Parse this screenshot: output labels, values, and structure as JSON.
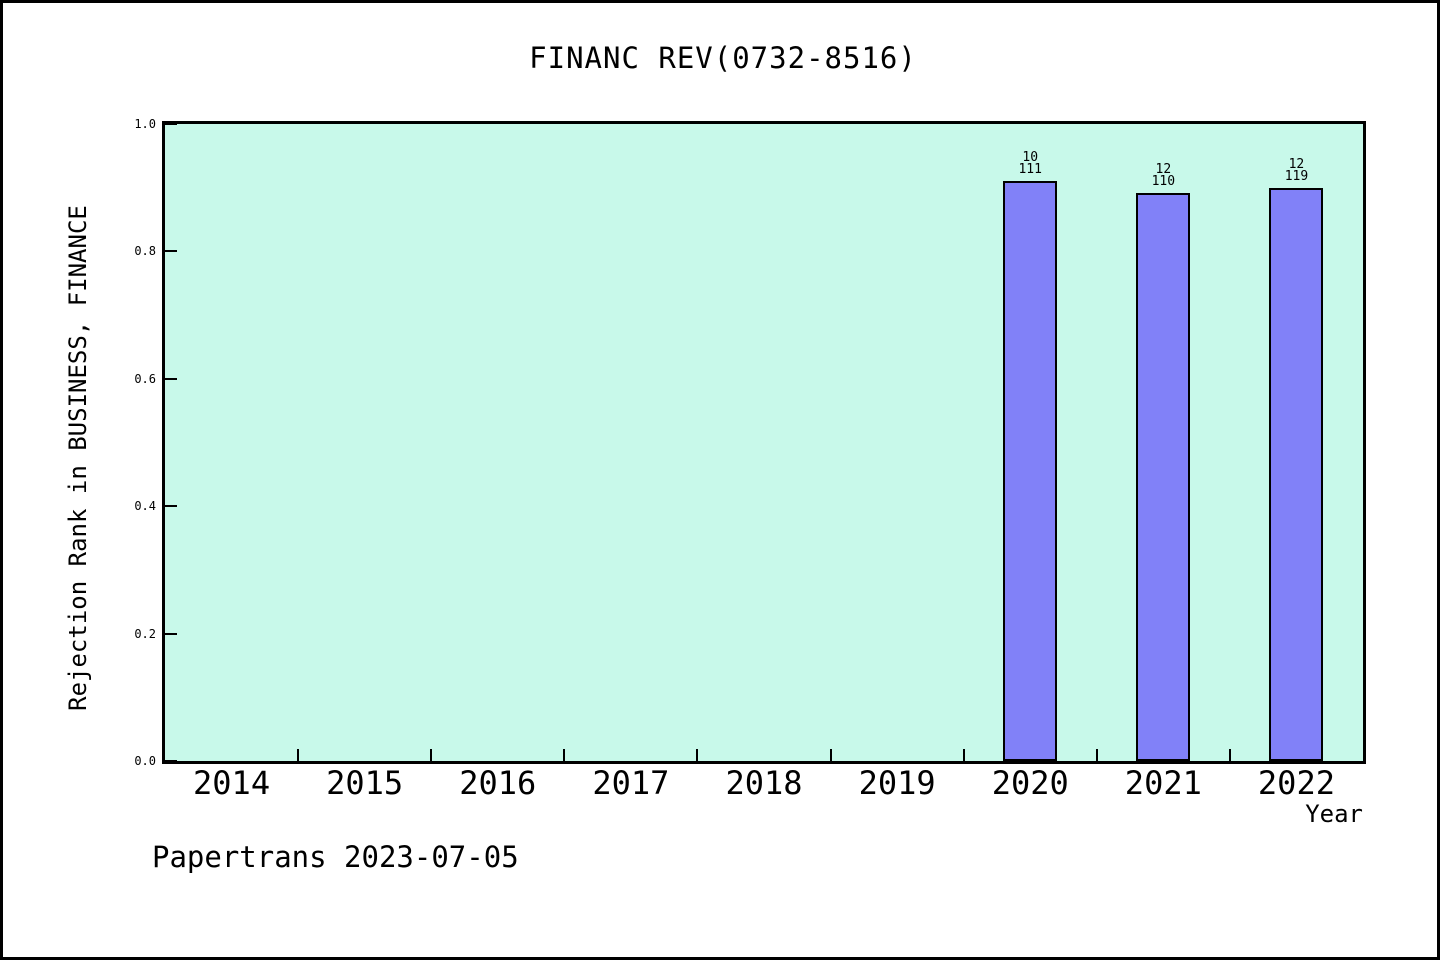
{
  "footer": {
    "text": "Papertrans 2023-07-05"
  },
  "chart_data": {
    "type": "bar",
    "title": "FINANC REV(0732-8516)",
    "xlabel": "Year",
    "ylabel": "Rejection Rank in BUSINESS, FINANCE",
    "categories": [
      "2014",
      "2015",
      "2016",
      "2017",
      "2018",
      "2019",
      "2020",
      "2021",
      "2022"
    ],
    "series": [
      {
        "name": "Rejection Rank",
        "values": [
          null,
          null,
          null,
          null,
          null,
          null,
          0.91,
          0.891,
          0.899
        ]
      }
    ],
    "bar_annotations": [
      {
        "category": "2020",
        "line1": "10",
        "line2": "111"
      },
      {
        "category": "2021",
        "line1": "12",
        "line2": "110"
      },
      {
        "category": "2022",
        "line1": "12",
        "line2": "119"
      }
    ],
    "ylim": [
      0.0,
      1.0
    ],
    "yticks": [
      "0.0",
      "0.2",
      "0.4",
      "0.6",
      "0.8",
      "1.0"
    ],
    "grid": false,
    "legend": "none",
    "layout": {
      "tick_style": "inward",
      "x_minor_ticks": "between-categories"
    },
    "colors": {
      "bar_fill": "#8181f8",
      "bar_border": "#000000",
      "plot_background": "#c8f9ea",
      "frame": "#000000",
      "text": "#000000",
      "page_background": "#ffffff"
    }
  }
}
